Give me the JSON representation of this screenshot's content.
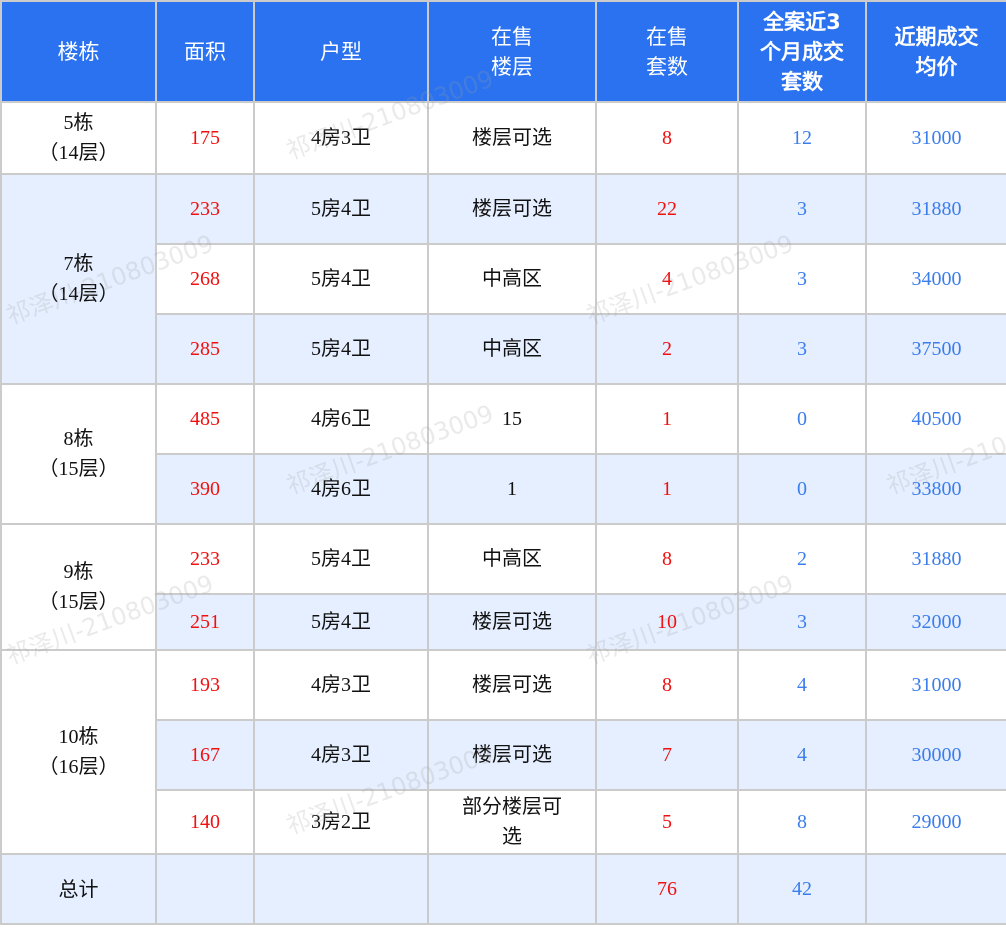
{
  "colors": {
    "header": "#2b72f0",
    "alt_row": "#e6efff",
    "red": "#f01010",
    "blue": "#3b7ded"
  },
  "watermark": "祁泽川-210803009",
  "headers": [
    "楼栋",
    "面积",
    "户型",
    "在售\n楼层",
    "在售\n套数",
    "全案近3\n个月成交\n套数",
    "近期成交\n均价"
  ],
  "groups": [
    {
      "building": "5栋\n（14层）",
      "bg": "white",
      "rows": [
        {
          "area": "175",
          "type": "4房3卫",
          "floors": "楼层可选",
          "on_sale": "8",
          "sold_3m": "12",
          "price": "31000",
          "bg": "white"
        }
      ]
    },
    {
      "building": "7栋\n（14层）",
      "bg": "blue",
      "rows": [
        {
          "area": "233",
          "type": "5房4卫",
          "floors": "楼层可选",
          "on_sale": "22",
          "sold_3m": "3",
          "price": "31880",
          "bg": "blue"
        },
        {
          "area": "268",
          "type": "5房4卫",
          "floors": "中高区",
          "on_sale": "4",
          "sold_3m": "3",
          "price": "34000",
          "bg": "white"
        },
        {
          "area": "285",
          "type": "5房4卫",
          "floors": "中高区",
          "on_sale": "2",
          "sold_3m": "3",
          "price": "37500",
          "bg": "blue"
        }
      ]
    },
    {
      "building": "8栋\n（15层）",
      "bg": "white",
      "rows": [
        {
          "area": "485",
          "type": "4房6卫",
          "floors": "15",
          "on_sale": "1",
          "sold_3m": "0",
          "price": "40500",
          "bg": "white"
        },
        {
          "area": "390",
          "type": "4房6卫",
          "floors": "1",
          "on_sale": "1",
          "sold_3m": "0",
          "price": "33800",
          "bg": "blue"
        }
      ]
    },
    {
      "building": "9栋\n（15层）",
      "bg": "white",
      "rows": [
        {
          "area": "233",
          "type": "5房4卫",
          "floors": "中高区",
          "on_sale": "8",
          "sold_3m": "2",
          "price": "31880",
          "bg": "white"
        },
        {
          "area": "251",
          "type": "5房4卫",
          "floors": "楼层可选",
          "on_sale": "10",
          "sold_3m": "3",
          "price": "32000",
          "bg": "blue"
        }
      ]
    },
    {
      "building": "10栋\n（16层）",
      "bg": "white",
      "rows": [
        {
          "area": "193",
          "type": "4房3卫",
          "floors": "楼层可选",
          "on_sale": "8",
          "sold_3m": "4",
          "price": "31000",
          "bg": "white"
        },
        {
          "area": "167",
          "type": "4房3卫",
          "floors": "楼层可选",
          "on_sale": "7",
          "sold_3m": "4",
          "price": "30000",
          "bg": "blue"
        },
        {
          "area": "140",
          "type": "3房2卫",
          "floors": "部分楼层可\n选",
          "on_sale": "5",
          "sold_3m": "8",
          "price": "29000",
          "bg": "white"
        }
      ]
    }
  ],
  "total": {
    "label": "总计",
    "on_sale": "76",
    "sold_3m": "42"
  }
}
